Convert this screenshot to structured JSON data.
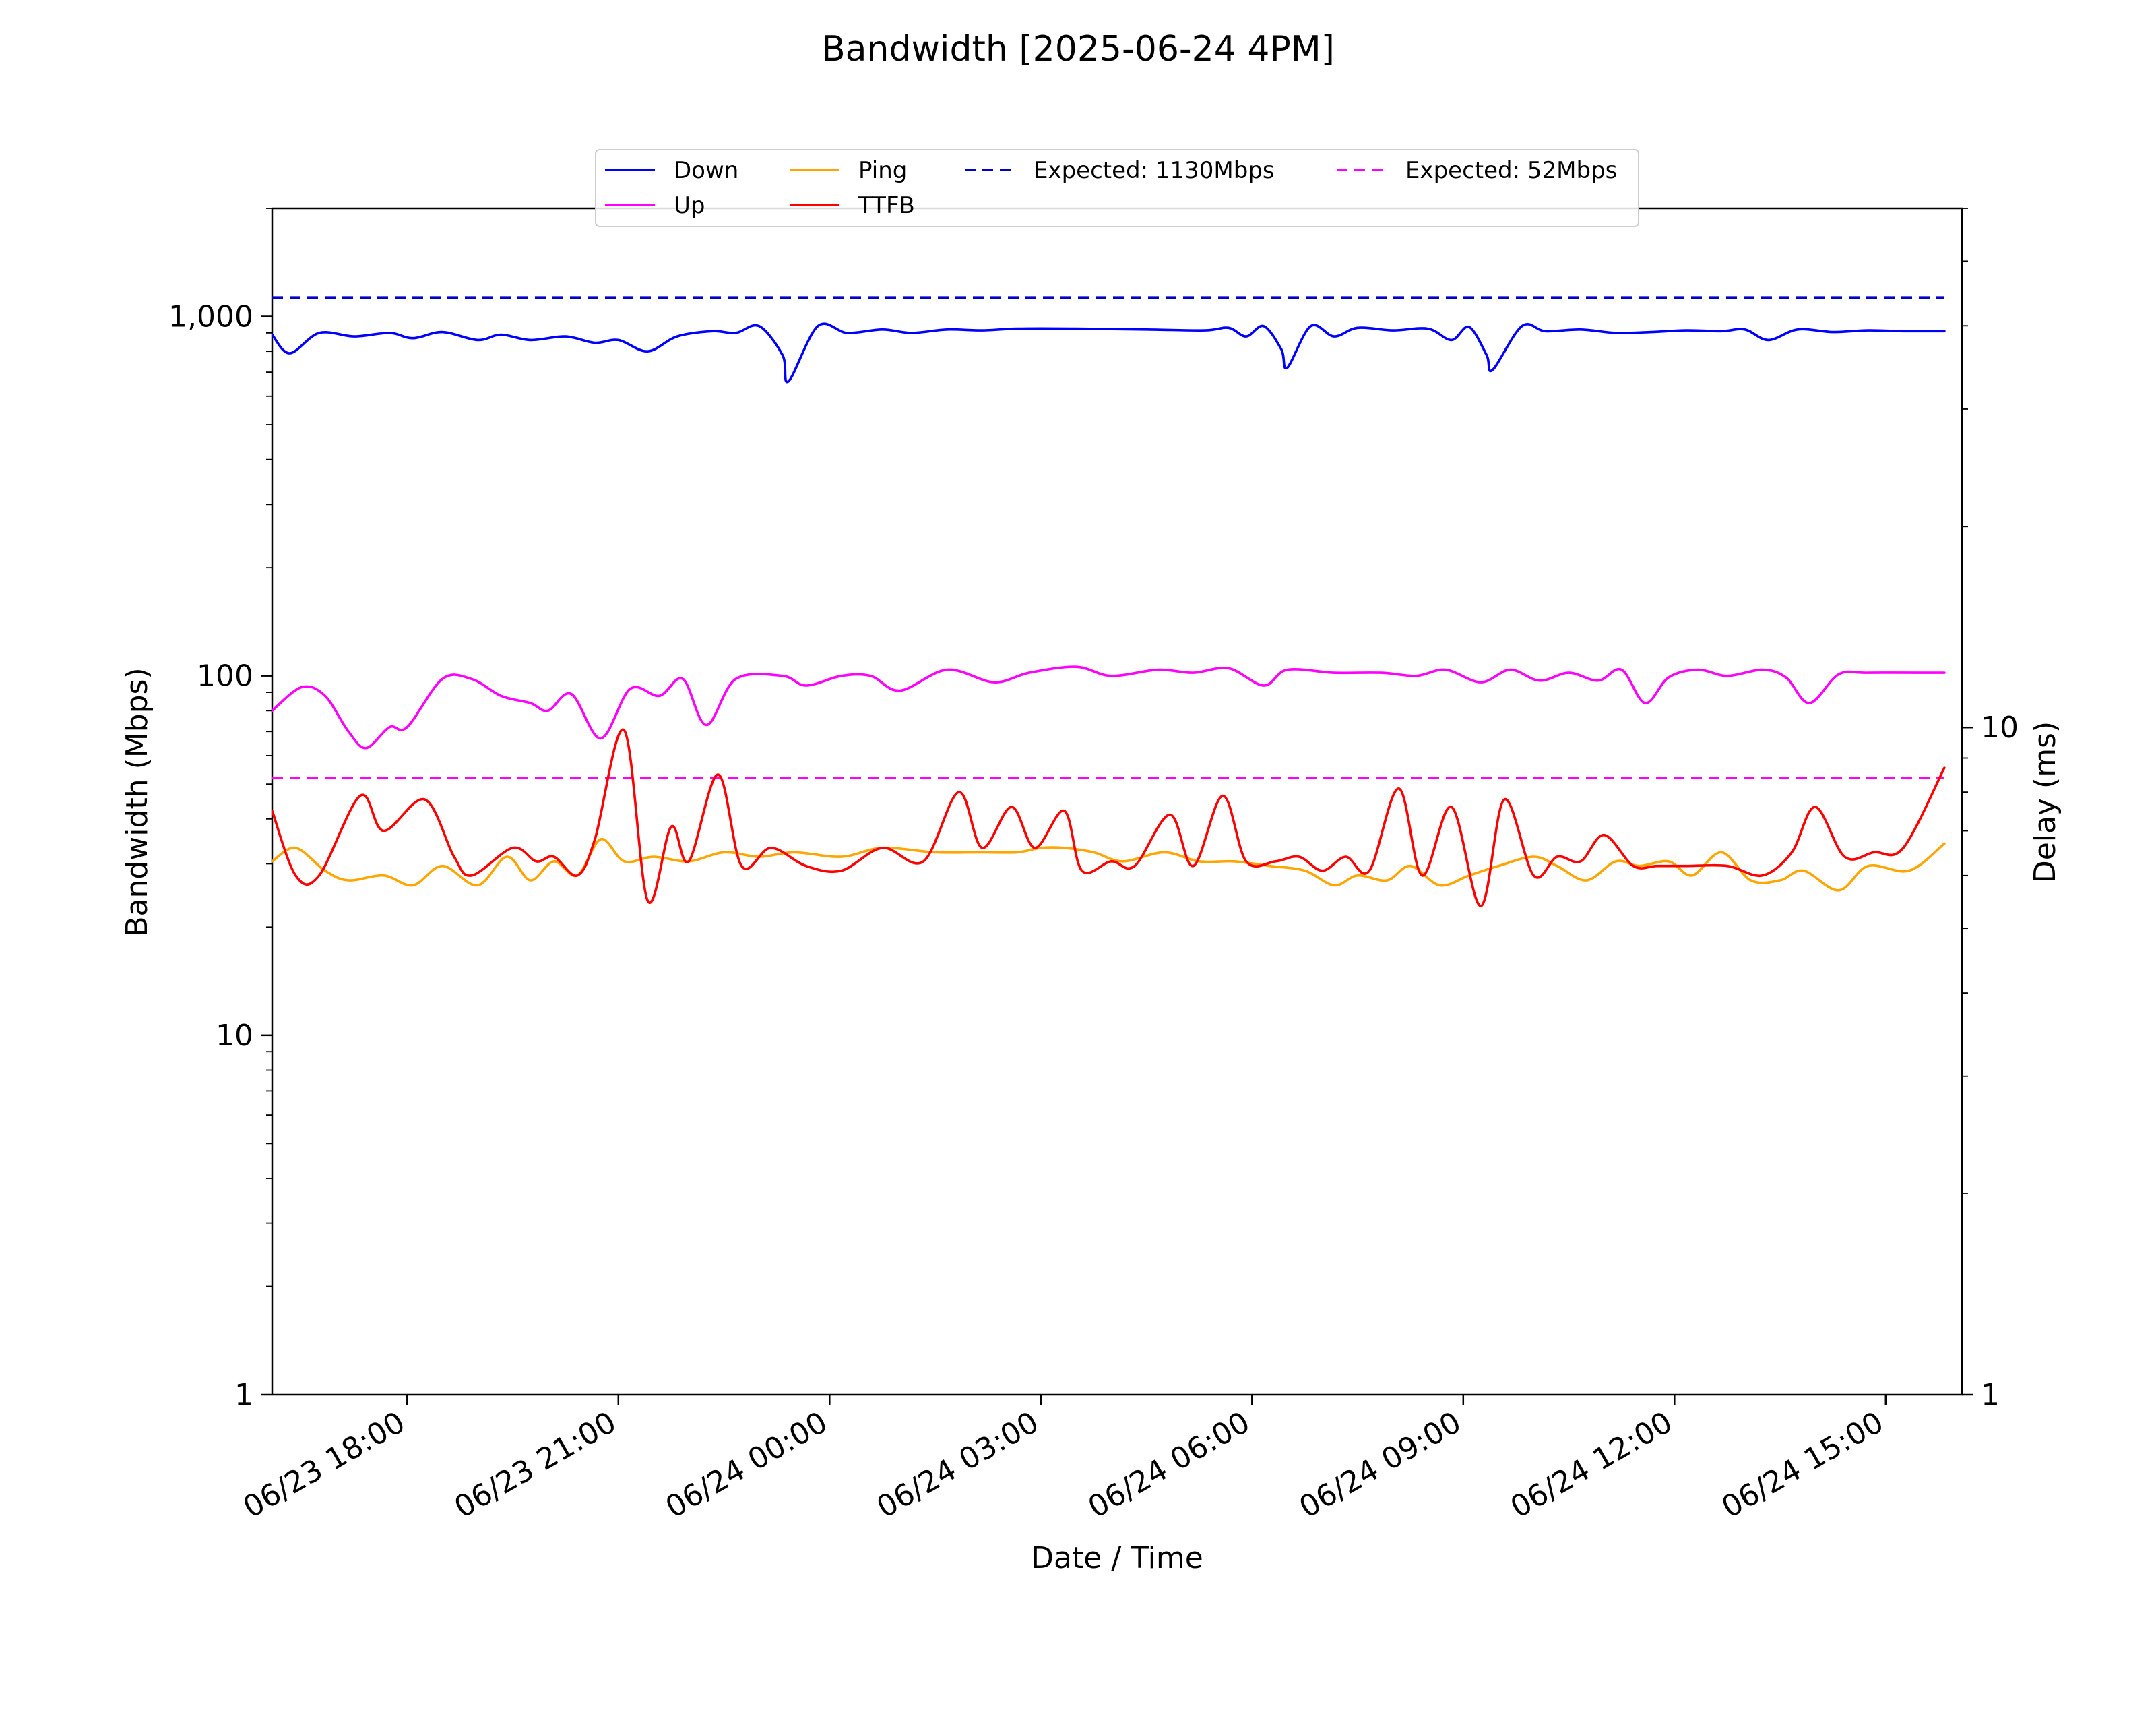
{
  "chart_data": {
    "type": "line",
    "title": "Bandwidth [2025-06-24 4PM]",
    "xlabel": "Date / Time",
    "ylabel": "Bandwidth (Mbps)",
    "y2label": "Delay (ms)",
    "y_scale": "log",
    "y2_scale": "log",
    "ylim": [
      1,
      2000
    ],
    "y2lim": [
      1,
      60
    ],
    "xlim": [
      "06/23 16:05",
      "06/24 16:05"
    ],
    "x_ticks": [
      "06/23 18:00",
      "06/23 21:00",
      "06/24 00:00",
      "06/24 03:00",
      "06/24 06:00",
      "06/24 09:00",
      "06/24 12:00",
      "06/24 15:00"
    ],
    "y_ticks": [
      "1",
      "10",
      "100",
      "1,000"
    ],
    "y2_ticks": [
      "1",
      "10"
    ],
    "legend_position": "upper center",
    "grid": false,
    "series": [
      {
        "name": "Down",
        "axis": "left",
        "color": "#0000ff",
        "style": "solid",
        "points": [
          [
            "06/23 16:05",
            890
          ],
          [
            "06/23 16:20",
            790
          ],
          [
            "06/23 16:45",
            900
          ],
          [
            "06/23 17:15",
            880
          ],
          [
            "06/23 17:45",
            900
          ],
          [
            "06/23 18:05",
            870
          ],
          [
            "06/23 18:30",
            905
          ],
          [
            "06/23 19:00",
            860
          ],
          [
            "06/23 19:20",
            890
          ],
          [
            "06/23 19:45",
            860
          ],
          [
            "06/23 20:15",
            880
          ],
          [
            "06/23 20:40",
            845
          ],
          [
            "06/23 21:00",
            860
          ],
          [
            "06/23 21:25",
            800
          ],
          [
            "06/23 21:50",
            880
          ],
          [
            "06/23 22:20",
            910
          ],
          [
            "06/23 22:40",
            900
          ],
          [
            "06/23 23:00",
            940
          ],
          [
            "06/23 23:20",
            780
          ],
          [
            "06/23 23:25",
            660
          ],
          [
            "06/23 23:50",
            940
          ],
          [
            "06/24 00:15",
            900
          ],
          [
            "06/24 00:45",
            920
          ],
          [
            "06/24 01:10",
            900
          ],
          [
            "06/24 01:40",
            920
          ],
          [
            "06/24 02:10",
            915
          ],
          [
            "06/24 02:40",
            925
          ],
          [
            "06/24 03:30",
            925
          ],
          [
            "06/24 04:30",
            920
          ],
          [
            "06/24 05:20",
            915
          ],
          [
            "06/24 05:40",
            930
          ],
          [
            "06/24 05:55",
            880
          ],
          [
            "06/24 06:10",
            940
          ],
          [
            "06/24 06:25",
            810
          ],
          [
            "06/24 06:30",
            720
          ],
          [
            "06/24 06:50",
            940
          ],
          [
            "06/24 07:10",
            880
          ],
          [
            "06/24 07:30",
            930
          ],
          [
            "06/24 08:00",
            915
          ],
          [
            "06/24 08:30",
            925
          ],
          [
            "06/24 08:50",
            860
          ],
          [
            "06/24 09:05",
            935
          ],
          [
            "06/24 09:20",
            780
          ],
          [
            "06/24 09:25",
            710
          ],
          [
            "06/24 09:50",
            940
          ],
          [
            "06/24 10:10",
            910
          ],
          [
            "06/24 10:40",
            920
          ],
          [
            "06/24 11:10",
            900
          ],
          [
            "06/24 11:40",
            905
          ],
          [
            "06/24 12:10",
            915
          ],
          [
            "06/24 12:40",
            910
          ],
          [
            "06/24 13:00",
            920
          ],
          [
            "06/24 13:20",
            860
          ],
          [
            "06/24 13:45",
            920
          ],
          [
            "06/24 14:15",
            905
          ],
          [
            "06/24 14:45",
            915
          ],
          [
            "06/24 15:15",
            910
          ],
          [
            "06/24 15:50",
            910
          ]
        ]
      },
      {
        "name": "Up",
        "axis": "left",
        "color": "#ff00ff",
        "style": "solid",
        "points": [
          [
            "06/23 16:05",
            80
          ],
          [
            "06/23 16:30",
            93
          ],
          [
            "06/23 16:50",
            88
          ],
          [
            "06/23 17:10",
            70
          ],
          [
            "06/23 17:25",
            63
          ],
          [
            "06/23 17:45",
            72
          ],
          [
            "06/23 18:00",
            72
          ],
          [
            "06/23 18:30",
            98
          ],
          [
            "06/23 18:55",
            98
          ],
          [
            "06/23 19:20",
            88
          ],
          [
            "06/23 19:45",
            84
          ],
          [
            "06/23 20:00",
            80
          ],
          [
            "06/23 20:20",
            89
          ],
          [
            "06/23 20:45",
            67
          ],
          [
            "06/23 21:10",
            92
          ],
          [
            "06/23 21:35",
            88
          ],
          [
            "06/23 21:55",
            98
          ],
          [
            "06/23 22:15",
            73
          ],
          [
            "06/23 22:40",
            98
          ],
          [
            "06/23 23:20",
            100
          ],
          [
            "06/23 23:40",
            94
          ],
          [
            "06/24 00:10",
            100
          ],
          [
            "06/24 00:35",
            100
          ],
          [
            "06/24 01:00",
            91
          ],
          [
            "06/24 01:40",
            104
          ],
          [
            "06/24 02:20",
            96
          ],
          [
            "06/24 02:50",
            102
          ],
          [
            "06/24 03:30",
            106
          ],
          [
            "06/24 04:00",
            100
          ],
          [
            "06/24 04:40",
            104
          ],
          [
            "06/24 05:10",
            102
          ],
          [
            "06/24 05:40",
            105
          ],
          [
            "06/24 06:10",
            94
          ],
          [
            "06/24 06:30",
            104
          ],
          [
            "06/24 07:10",
            102
          ],
          [
            "06/24 07:50",
            102
          ],
          [
            "06/24 08:20",
            100
          ],
          [
            "06/24 08:45",
            104
          ],
          [
            "06/24 09:15",
            96
          ],
          [
            "06/24 09:40",
            104
          ],
          [
            "06/24 10:05",
            97
          ],
          [
            "06/24 10:30",
            102
          ],
          [
            "06/24 10:55",
            97
          ],
          [
            "06/24 11:15",
            104
          ],
          [
            "06/24 11:35",
            84
          ],
          [
            "06/24 11:55",
            99
          ],
          [
            "06/24 12:20",
            104
          ],
          [
            "06/24 12:45",
            100
          ],
          [
            "06/24 13:15",
            104
          ],
          [
            "06/24 13:35",
            99
          ],
          [
            "06/24 13:55",
            84
          ],
          [
            "06/24 14:20",
            101
          ],
          [
            "06/24 14:45",
            102
          ],
          [
            "06/24 15:50",
            102
          ]
        ]
      },
      {
        "name": "Ping",
        "axis": "right",
        "color": "#ffa500",
        "style": "solid",
        "points": [
          [
            "06/23 16:05",
            6.3
          ],
          [
            "06/23 16:25",
            6.6
          ],
          [
            "06/23 16:50",
            6.1
          ],
          [
            "06/23 17:10",
            5.9
          ],
          [
            "06/23 17:40",
            6.0
          ],
          [
            "06/23 18:05",
            5.8
          ],
          [
            "06/23 18:30",
            6.2
          ],
          [
            "06/23 19:00",
            5.8
          ],
          [
            "06/23 19:25",
            6.4
          ],
          [
            "06/23 19:45",
            5.9
          ],
          [
            "06/23 20:05",
            6.3
          ],
          [
            "06/23 20:25",
            6.0
          ],
          [
            "06/23 20:45",
            6.8
          ],
          [
            "06/23 21:05",
            6.3
          ],
          [
            "06/23 21:30",
            6.4
          ],
          [
            "06/23 22:00",
            6.3
          ],
          [
            "06/23 22:30",
            6.5
          ],
          [
            "06/23 23:00",
            6.4
          ],
          [
            "06/23 23:30",
            6.5
          ],
          [
            "06/24 00:10",
            6.4
          ],
          [
            "06/24 00:45",
            6.6
          ],
          [
            "06/24 01:30",
            6.5
          ],
          [
            "06/24 02:10",
            6.5
          ],
          [
            "06/24 02:40",
            6.5
          ],
          [
            "06/24 03:00",
            6.6
          ],
          [
            "06/24 03:20",
            6.6
          ],
          [
            "06/24 03:45",
            6.5
          ],
          [
            "06/24 04:10",
            6.3
          ],
          [
            "06/24 04:45",
            6.5
          ],
          [
            "06/24 05:15",
            6.3
          ],
          [
            "06/24 05:45",
            6.3
          ],
          [
            "06/24 06:15",
            6.2
          ],
          [
            "06/24 06:45",
            6.1
          ],
          [
            "06/24 07:10",
            5.8
          ],
          [
            "06/24 07:30",
            6.0
          ],
          [
            "06/24 07:55",
            5.9
          ],
          [
            "06/24 08:15",
            6.2
          ],
          [
            "06/24 08:40",
            5.8
          ],
          [
            "06/24 09:05",
            6.0
          ],
          [
            "06/24 09:30",
            6.2
          ],
          [
            "06/24 10:00",
            6.4
          ],
          [
            "06/24 10:20",
            6.2
          ],
          [
            "06/24 10:45",
            5.9
          ],
          [
            "06/24 11:10",
            6.3
          ],
          [
            "06/24 11:30",
            6.2
          ],
          [
            "06/24 11:55",
            6.3
          ],
          [
            "06/24 12:15",
            6.0
          ],
          [
            "06/24 12:40",
            6.5
          ],
          [
            "06/24 13:05",
            5.9
          ],
          [
            "06/24 13:30",
            5.9
          ],
          [
            "06/24 13:50",
            6.1
          ],
          [
            "06/24 14:20",
            5.7
          ],
          [
            "06/24 14:45",
            6.2
          ],
          [
            "06/24 15:20",
            6.1
          ],
          [
            "06/24 15:50",
            6.7
          ]
        ]
      },
      {
        "name": "TTFB",
        "axis": "right",
        "color": "#ff0000",
        "style": "solid",
        "points": [
          [
            "06/23 16:05",
            7.5
          ],
          [
            "06/23 16:25",
            6.0
          ],
          [
            "06/23 16:45",
            6.0
          ],
          [
            "06/23 17:20",
            7.9
          ],
          [
            "06/23 17:40",
            7.0
          ],
          [
            "06/23 18:15",
            7.8
          ],
          [
            "06/23 18:40",
            6.4
          ],
          [
            "06/23 18:55",
            6.0
          ],
          [
            "06/23 19:30",
            6.6
          ],
          [
            "06/23 19:50",
            6.3
          ],
          [
            "06/23 20:05",
            6.4
          ],
          [
            "06/23 20:25",
            6.0
          ],
          [
            "06/23 20:40",
            6.8
          ],
          [
            "06/23 21:05",
            9.9
          ],
          [
            "06/23 21:25",
            5.5
          ],
          [
            "06/23 21:45",
            7.1
          ],
          [
            "06/23 22:00",
            6.3
          ],
          [
            "06/23 22:25",
            8.5
          ],
          [
            "06/23 22:45",
            6.2
          ],
          [
            "06/23 23:10",
            6.6
          ],
          [
            "06/23 23:40",
            6.2
          ],
          [
            "06/24 00:10",
            6.1
          ],
          [
            "06/24 00:45",
            6.6
          ],
          [
            "06/24 01:20",
            6.3
          ],
          [
            "06/24 01:50",
            8.0
          ],
          [
            "06/24 02:10",
            6.6
          ],
          [
            "06/24 02:35",
            7.6
          ],
          [
            "06/24 02:55",
            6.6
          ],
          [
            "06/24 03:20",
            7.5
          ],
          [
            "06/24 03:35",
            6.1
          ],
          [
            "06/24 04:00",
            6.3
          ],
          [
            "06/24 04:20",
            6.2
          ],
          [
            "06/24 04:50",
            7.4
          ],
          [
            "06/24 05:10",
            6.2
          ],
          [
            "06/24 05:35",
            7.9
          ],
          [
            "06/24 05:55",
            6.3
          ],
          [
            "06/24 06:20",
            6.3
          ],
          [
            "06/24 06:40",
            6.4
          ],
          [
            "06/24 07:00",
            6.1
          ],
          [
            "06/24 07:20",
            6.4
          ],
          [
            "06/24 07:40",
            6.1
          ],
          [
            "06/24 08:05",
            8.1
          ],
          [
            "06/24 08:25",
            6.0
          ],
          [
            "06/24 08:50",
            7.6
          ],
          [
            "06/24 09:15",
            5.4
          ],
          [
            "06/24 09:35",
            7.8
          ],
          [
            "06/24 10:00",
            6.0
          ],
          [
            "06/24 10:20",
            6.4
          ],
          [
            "06/24 10:40",
            6.3
          ],
          [
            "06/24 11:00",
            6.9
          ],
          [
            "06/24 11:25",
            6.2
          ],
          [
            "06/24 11:45",
            6.2
          ],
          [
            "06/24 12:10",
            6.2
          ],
          [
            "06/24 12:45",
            6.2
          ],
          [
            "06/24 13:15",
            6.0
          ],
          [
            "06/24 13:40",
            6.5
          ],
          [
            "06/24 14:00",
            7.6
          ],
          [
            "06/24 14:25",
            6.4
          ],
          [
            "06/24 14:50",
            6.5
          ],
          [
            "06/24 15:15",
            6.6
          ],
          [
            "06/24 15:50",
            8.7
          ]
        ]
      },
      {
        "name": "Expected: 1130Mbps",
        "axis": "left",
        "color": "#0000cc",
        "style": "dashed",
        "points": [
          [
            "06/23 16:05",
            1130
          ],
          [
            "06/24 15:50",
            1130
          ]
        ]
      },
      {
        "name": "Expected: 52Mbps",
        "axis": "left",
        "color": "#ff00ff",
        "style": "dashed",
        "points": [
          [
            "06/23 16:05",
            52
          ],
          [
            "06/24 15:50",
            52
          ]
        ]
      }
    ]
  }
}
